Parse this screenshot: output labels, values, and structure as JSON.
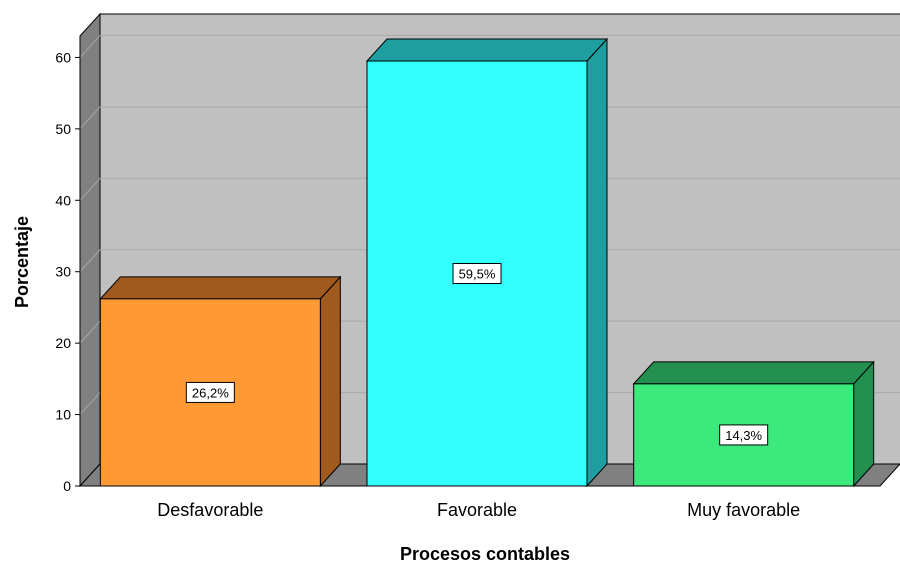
{
  "chart_data": {
    "type": "bar",
    "categories": [
      "Desfavorable",
      "Favorable",
      "Muy favorable"
    ],
    "values": [
      26.2,
      59.5,
      14.3
    ],
    "data_labels": [
      "26,2%",
      "59,5%",
      "14,3%"
    ],
    "xlabel": "Procesos contables",
    "ylabel": "Porcentaje",
    "ylim": [
      0,
      63
    ],
    "yticks": [
      "0",
      "10",
      "20",
      "30",
      "40",
      "50",
      "60"
    ],
    "grid": true,
    "three_d": true,
    "colors": {
      "bar_front": [
        "#FF9933",
        "#33FFFF",
        "#3DE97D"
      ],
      "bar_side": [
        "#A15A1E",
        "#1E9E9E",
        "#239050"
      ],
      "bar_top": [
        "#A15A1E",
        "#1E9E9E",
        "#239050"
      ],
      "plot_back": "#C0C0C0",
      "plot_wall": "#808080",
      "gridline": "#A8A8A8"
    }
  }
}
